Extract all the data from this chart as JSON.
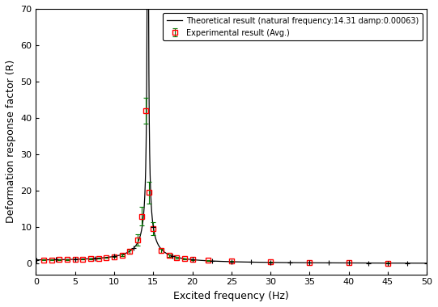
{
  "title": "",
  "xlabel": "Excited frequency (Hz)",
  "ylabel": "Deformation response factor (R)",
  "xlim": [
    0,
    50
  ],
  "ylim": [
    -3,
    70
  ],
  "yticks": [
    0,
    10,
    20,
    30,
    40,
    50,
    60,
    70
  ],
  "xticks": [
    0,
    5,
    10,
    15,
    20,
    25,
    30,
    35,
    40,
    45,
    50
  ],
  "natural_frequency": 14.31,
  "damping": 0.00063,
  "legend1": "Theoretical result (natural frequency:14.31 damp:0.00063)",
  "legend2": "Experimental result (Avg.)",
  "exp_frequencies": [
    1,
    2,
    3,
    4,
    5,
    6,
    7,
    8,
    9,
    10,
    11,
    12,
    13,
    13.5,
    14,
    14.5,
    15,
    16,
    17,
    18,
    19,
    20,
    22,
    25,
    30,
    35,
    40,
    45
  ],
  "exp_values": [
    1.01,
    1.02,
    1.04,
    1.07,
    1.12,
    1.18,
    1.27,
    1.4,
    1.58,
    1.85,
    2.3,
    3.3,
    6.5,
    13.0,
    42.0,
    19.5,
    9.5,
    3.5,
    2.2,
    1.6,
    1.3,
    1.1,
    0.85,
    0.62,
    0.38,
    0.25,
    0.18,
    0.13
  ],
  "exp_errors": [
    0.05,
    0.05,
    0.05,
    0.05,
    0.05,
    0.05,
    0.05,
    0.05,
    0.1,
    0.15,
    0.25,
    0.5,
    1.5,
    2.5,
    3.5,
    3.0,
    1.8,
    0.6,
    0.3,
    0.2,
    0.15,
    0.1,
    0.08,
    0.06,
    0.05,
    0.04,
    0.03,
    0.03
  ],
  "theory_color": "#000000",
  "exp_color": "#ff0000",
  "exp_marker_fill": "none",
  "background_color": "#ffffff"
}
